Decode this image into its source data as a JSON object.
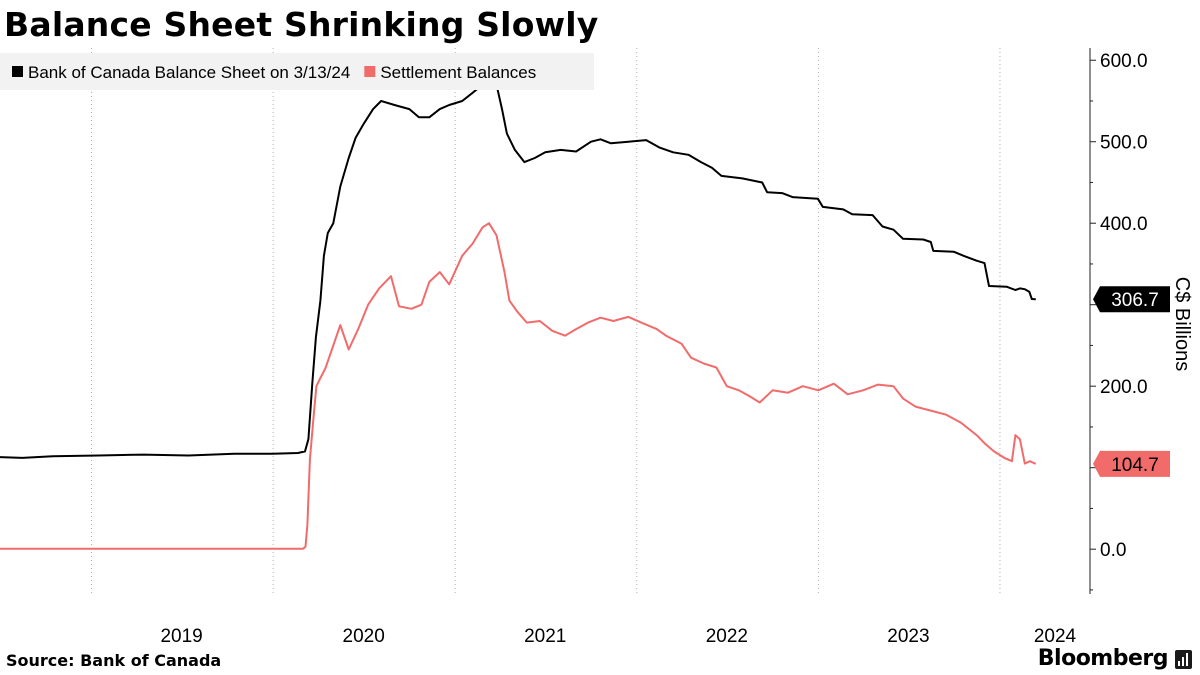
{
  "title": "Balance Sheet Shrinking Slowly",
  "source": "Source:  Bank of Canada",
  "brand": "Bloomberg",
  "brand_mark_icon": "bar-chart-icon",
  "colors": {
    "balance_sheet": "#000000",
    "settlement": "#f26b6b",
    "grid": "#b0b0b0",
    "axis": "#222222",
    "legend_bg": "#f2f2f2"
  },
  "chart_data": {
    "type": "line",
    "title": "Balance Sheet Shrinking Slowly",
    "ylabel": "C$ Billions",
    "xlabel": "",
    "ylim": [
      -55,
      615
    ],
    "xlim": [
      "2018-07-01",
      "2024-06-30"
    ],
    "y_ticks": [
      0,
      100,
      200,
      300,
      400,
      500,
      600
    ],
    "y_tick_labels": [
      "0.0",
      "",
      "200.0",
      "",
      "400.0",
      "500.0",
      "600.0"
    ],
    "x_tick_labels": [
      "2019",
      "2020",
      "2021",
      "2022",
      "2023",
      "2024"
    ],
    "grid": "vertical",
    "legend_position": "top-left",
    "y_axis_side": "right",
    "series": [
      {
        "name": "Bank of Canada Balance Sheet on 3/13/24",
        "color": "#000000",
        "last_label": "306.7",
        "points": [
          [
            "2018-07-01",
            113
          ],
          [
            "2018-08-15",
            112
          ],
          [
            "2018-10-15",
            114
          ],
          [
            "2019-01-15",
            115
          ],
          [
            "2019-04-15",
            116
          ],
          [
            "2019-07-15",
            115
          ],
          [
            "2019-10-15",
            117
          ],
          [
            "2019-12-31",
            117
          ],
          [
            "2020-02-20",
            118
          ],
          [
            "2020-03-05",
            120
          ],
          [
            "2020-03-12",
            135
          ],
          [
            "2020-03-20",
            205
          ],
          [
            "2020-03-27",
            260
          ],
          [
            "2020-04-05",
            305
          ],
          [
            "2020-04-12",
            360
          ],
          [
            "2020-04-20",
            388
          ],
          [
            "2020-05-01",
            400
          ],
          [
            "2020-05-15",
            445
          ],
          [
            "2020-06-01",
            480
          ],
          [
            "2020-06-15",
            505
          ],
          [
            "2020-07-01",
            522
          ],
          [
            "2020-07-20",
            540
          ],
          [
            "2020-08-05",
            550
          ],
          [
            "2020-09-01",
            545
          ],
          [
            "2020-10-01",
            540
          ],
          [
            "2020-10-20",
            530
          ],
          [
            "2020-11-10",
            530
          ],
          [
            "2020-12-01",
            540
          ],
          [
            "2020-12-20",
            545
          ],
          [
            "2021-01-15",
            550
          ],
          [
            "2021-02-05",
            560
          ],
          [
            "2021-02-25",
            570
          ],
          [
            "2021-03-10",
            575
          ],
          [
            "2021-03-25",
            570
          ],
          [
            "2021-04-05",
            540
          ],
          [
            "2021-04-15",
            510
          ],
          [
            "2021-05-01",
            490
          ],
          [
            "2021-05-20",
            475
          ],
          [
            "2021-06-10",
            480
          ],
          [
            "2021-07-01",
            487
          ],
          [
            "2021-08-01",
            490
          ],
          [
            "2021-09-01",
            488
          ],
          [
            "2021-10-01",
            500
          ],
          [
            "2021-10-20",
            503
          ],
          [
            "2021-11-10",
            498
          ],
          [
            "2021-12-15",
            500
          ],
          [
            "2022-01-20",
            502
          ],
          [
            "2022-02-15",
            493
          ],
          [
            "2022-03-15",
            487
          ],
          [
            "2022-04-15",
            484
          ],
          [
            "2022-05-10",
            475
          ],
          [
            "2022-06-01",
            468
          ],
          [
            "2022-06-20",
            458
          ],
          [
            "2022-08-01",
            455
          ],
          [
            "2022-09-10",
            450
          ],
          [
            "2022-09-20",
            438
          ],
          [
            "2022-10-20",
            437
          ],
          [
            "2022-11-10",
            432
          ],
          [
            "2022-12-31",
            430
          ],
          [
            "2023-01-10",
            420
          ],
          [
            "2023-02-20",
            417
          ],
          [
            "2023-03-10",
            411
          ],
          [
            "2023-04-20",
            410
          ],
          [
            "2023-05-10",
            396
          ],
          [
            "2023-06-01",
            392
          ],
          [
            "2023-06-20",
            381
          ],
          [
            "2023-07-31",
            380
          ],
          [
            "2023-08-15",
            377
          ],
          [
            "2023-08-20",
            366
          ],
          [
            "2023-09-30",
            365
          ],
          [
            "2023-10-20",
            360
          ],
          [
            "2023-11-15",
            354
          ],
          [
            "2023-12-01",
            351
          ],
          [
            "2023-12-10",
            323
          ],
          [
            "2024-01-15",
            322
          ],
          [
            "2024-02-01",
            318
          ],
          [
            "2024-02-10",
            320
          ],
          [
            "2024-02-20",
            319
          ],
          [
            "2024-02-29",
            316
          ],
          [
            "2024-03-05",
            307
          ],
          [
            "2024-03-13",
            306.7
          ]
        ]
      },
      {
        "name": "Settlement Balances",
        "color": "#f26b6b",
        "last_label": "104.7",
        "points": [
          [
            "2018-07-01",
            0.5
          ],
          [
            "2019-01-01",
            0.5
          ],
          [
            "2019-07-01",
            0.5
          ],
          [
            "2020-01-01",
            0.5
          ],
          [
            "2020-03-01",
            0.5
          ],
          [
            "2020-03-06",
            3
          ],
          [
            "2020-03-10",
            30
          ],
          [
            "2020-03-15",
            110
          ],
          [
            "2020-03-22",
            160
          ],
          [
            "2020-03-28",
            200
          ],
          [
            "2020-04-05",
            210
          ],
          [
            "2020-04-15",
            222
          ],
          [
            "2020-05-01",
            250
          ],
          [
            "2020-05-15",
            275
          ],
          [
            "2020-06-01",
            245
          ],
          [
            "2020-06-20",
            270
          ],
          [
            "2020-07-10",
            300
          ],
          [
            "2020-08-01",
            320
          ],
          [
            "2020-08-25",
            335
          ],
          [
            "2020-09-10",
            298
          ],
          [
            "2020-10-05",
            295
          ],
          [
            "2020-10-25",
            300
          ],
          [
            "2020-11-10",
            328
          ],
          [
            "2020-12-01",
            340
          ],
          [
            "2020-12-20",
            325
          ],
          [
            "2021-01-15",
            360
          ],
          [
            "2021-02-05",
            375
          ],
          [
            "2021-02-25",
            395
          ],
          [
            "2021-03-10",
            400
          ],
          [
            "2021-03-25",
            385
          ],
          [
            "2021-04-10",
            340
          ],
          [
            "2021-04-20",
            305
          ],
          [
            "2021-05-05",
            292
          ],
          [
            "2021-05-25",
            278
          ],
          [
            "2021-06-20",
            280
          ],
          [
            "2021-07-15",
            268
          ],
          [
            "2021-08-10",
            262
          ],
          [
            "2021-09-01",
            270
          ],
          [
            "2021-09-25",
            278
          ],
          [
            "2021-10-20",
            284
          ],
          [
            "2021-11-15",
            280
          ],
          [
            "2021-12-15",
            285
          ],
          [
            "2022-01-10",
            278
          ],
          [
            "2022-02-10",
            270
          ],
          [
            "2022-03-01",
            262
          ],
          [
            "2022-04-01",
            252
          ],
          [
            "2022-04-20",
            235
          ],
          [
            "2022-05-15",
            228
          ],
          [
            "2022-06-10",
            223
          ],
          [
            "2022-07-01",
            200
          ],
          [
            "2022-07-25",
            195
          ],
          [
            "2022-08-15",
            188
          ],
          [
            "2022-09-05",
            180
          ],
          [
            "2022-10-01",
            195
          ],
          [
            "2022-11-01",
            192
          ],
          [
            "2022-12-01",
            200
          ],
          [
            "2023-01-01",
            195
          ],
          [
            "2023-02-01",
            203
          ],
          [
            "2023-03-01",
            190
          ],
          [
            "2023-04-01",
            195
          ],
          [
            "2023-05-01",
            202
          ],
          [
            "2023-06-01",
            200
          ],
          [
            "2023-06-20",
            185
          ],
          [
            "2023-07-15",
            175
          ],
          [
            "2023-08-15",
            170
          ],
          [
            "2023-09-15",
            165
          ],
          [
            "2023-10-15",
            155
          ],
          [
            "2023-11-15",
            140
          ],
          [
            "2023-12-01",
            130
          ],
          [
            "2023-12-20",
            120
          ],
          [
            "2024-01-10",
            112
          ],
          [
            "2024-01-25",
            108
          ],
          [
            "2024-02-01",
            140
          ],
          [
            "2024-02-10",
            135
          ],
          [
            "2024-02-20",
            105
          ],
          [
            "2024-03-01",
            108
          ],
          [
            "2024-03-13",
            104.7
          ]
        ]
      }
    ]
  }
}
